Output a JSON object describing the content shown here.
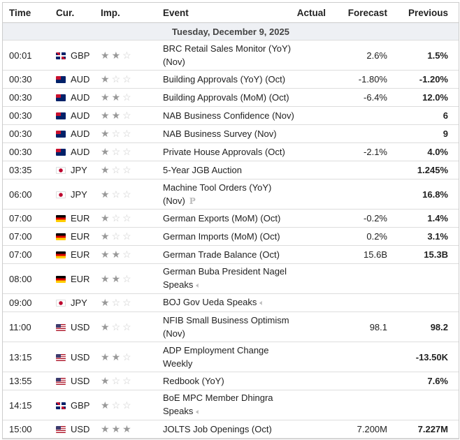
{
  "headers": {
    "time": "Time",
    "cur": "Cur.",
    "imp": "Imp.",
    "event": "Event",
    "actual": "Actual",
    "forecast": "Forecast",
    "previous": "Previous"
  },
  "date": "Tuesday, December 9, 2025",
  "colors": {
    "GB": "#c8102e",
    "AU": "#012169",
    "JP": "#ffffff",
    "DE": "#000000",
    "US": "#3c3b6e"
  },
  "rows": [
    {
      "time": "00:01",
      "flag": "GB",
      "cur": "GBP",
      "imp": 2,
      "event": "BRC Retail Sales Monitor (YoY) (Nov)",
      "actual": "",
      "forecast": "2.6%",
      "previous": "1.5%",
      "two": true
    },
    {
      "time": "00:30",
      "flag": "AU",
      "cur": "AUD",
      "imp": 1,
      "event": "Building Approvals (YoY) (Oct)",
      "actual": "",
      "forecast": "-1.80%",
      "previous": "-1.20%"
    },
    {
      "time": "00:30",
      "flag": "AU",
      "cur": "AUD",
      "imp": 2,
      "event": "Building Approvals (MoM) (Oct)",
      "actual": "",
      "forecast": "-6.4%",
      "previous": "12.0%"
    },
    {
      "time": "00:30",
      "flag": "AU",
      "cur": "AUD",
      "imp": 2,
      "event": "NAB Business Confidence (Nov)",
      "actual": "",
      "forecast": "",
      "previous": "6"
    },
    {
      "time": "00:30",
      "flag": "AU",
      "cur": "AUD",
      "imp": 1,
      "event": "NAB Business Survey (Nov)",
      "actual": "",
      "forecast": "",
      "previous": "9"
    },
    {
      "time": "00:30",
      "flag": "AU",
      "cur": "AUD",
      "imp": 1,
      "event": "Private House Approvals (Oct)",
      "actual": "",
      "forecast": "-2.1%",
      "previous": "4.0%"
    },
    {
      "time": "03:35",
      "flag": "JP",
      "cur": "JPY",
      "imp": 1,
      "event": "5-Year JGB Auction",
      "actual": "",
      "forecast": "",
      "previous": "1.245%"
    },
    {
      "time": "06:00",
      "flag": "JP",
      "cur": "JPY",
      "imp": 1,
      "event": "Machine Tool Orders (YoY) (Nov)",
      "actual": "",
      "forecast": "",
      "previous": "16.8%",
      "two": true,
      "icon": "preliminary-icon",
      "icon_text": "P"
    },
    {
      "time": "07:00",
      "flag": "DE",
      "cur": "EUR",
      "imp": 1,
      "event": "German Exports (MoM) (Oct)",
      "actual": "",
      "forecast": "-0.2%",
      "previous": "1.4%"
    },
    {
      "time": "07:00",
      "flag": "DE",
      "cur": "EUR",
      "imp": 1,
      "event": "German Imports (MoM) (Oct)",
      "actual": "",
      "forecast": "0.2%",
      "previous": "3.1%"
    },
    {
      "time": "07:00",
      "flag": "DE",
      "cur": "EUR",
      "imp": 2,
      "event": "German Trade Balance (Oct)",
      "actual": "",
      "forecast": "15.6B",
      "previous": "15.3B"
    },
    {
      "time": "08:00",
      "flag": "DE",
      "cur": "EUR",
      "imp": 2,
      "event": "German Buba President Nagel Speaks",
      "actual": "",
      "forecast": "",
      "previous": "",
      "two": true,
      "icon": "speaker-icon"
    },
    {
      "time": "09:00",
      "flag": "JP",
      "cur": "JPY",
      "imp": 1,
      "event": "BOJ Gov Ueda Speaks",
      "actual": "",
      "forecast": "",
      "previous": "",
      "icon": "speaker-icon"
    },
    {
      "time": "11:00",
      "flag": "US",
      "cur": "USD",
      "imp": 1,
      "event": "NFIB Small Business Optimism (Nov)",
      "actual": "",
      "forecast": "98.1",
      "previous": "98.2",
      "two": true
    },
    {
      "time": "13:15",
      "flag": "US",
      "cur": "USD",
      "imp": 2,
      "event": "ADP Employment Change Weekly",
      "actual": "",
      "forecast": "",
      "previous": "-13.50K",
      "two": true
    },
    {
      "time": "13:55",
      "flag": "US",
      "cur": "USD",
      "imp": 1,
      "event": "Redbook (YoY)",
      "actual": "",
      "forecast": "",
      "previous": "7.6%"
    },
    {
      "time": "14:15",
      "flag": "GB",
      "cur": "GBP",
      "imp": 1,
      "event": "BoE MPC Member Dhingra Speaks",
      "actual": "",
      "forecast": "",
      "previous": "",
      "two": true,
      "icon": "speaker-icon"
    },
    {
      "time": "15:00",
      "flag": "US",
      "cur": "USD",
      "imp": 3,
      "event": "JOLTS Job Openings (Oct)",
      "actual": "",
      "forecast": "7.200M",
      "previous": "7.227M"
    }
  ]
}
